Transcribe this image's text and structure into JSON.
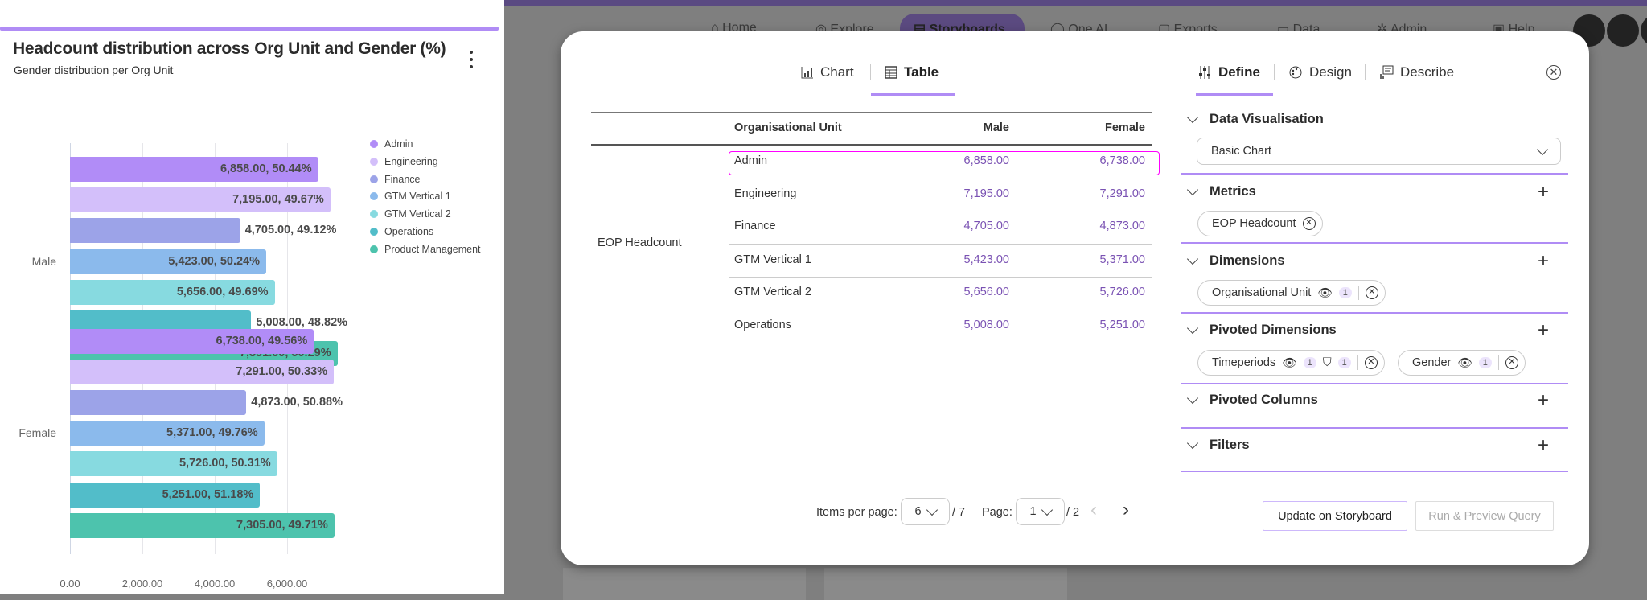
{
  "card": {
    "title": "Headcount distribution across Org Unit and Gender (%)",
    "subtitle": "Gender distribution per Org Unit"
  },
  "chart_data": {
    "type": "bar",
    "orientation": "horizontal",
    "categories": [
      "Male",
      "Female"
    ],
    "xticks": [
      "0.00",
      "2,000.00",
      "4,000.00",
      "6,000.00"
    ],
    "xlim": [
      0,
      7500
    ],
    "grid": true,
    "legend": "right",
    "series": [
      {
        "name": "Admin",
        "color": "#b18cf7",
        "values": [
          6858,
          6738
        ],
        "percents": [
          50.44,
          49.56
        ],
        "labels": [
          "6,858.00, 50.44%",
          "6,738.00, 49.56%"
        ]
      },
      {
        "name": "Engineering",
        "color": "#d3bffa",
        "values": [
          7195,
          7291
        ],
        "percents": [
          49.67,
          50.33
        ],
        "labels": [
          "7,195.00, 49.67%",
          "7,291.00, 50.33%"
        ]
      },
      {
        "name": "Finance",
        "color": "#9ca3e8",
        "values": [
          4705,
          4873
        ],
        "percents": [
          49.12,
          50.88
        ],
        "labels": [
          "4,705.00, 49.12%",
          "4,873.00, 50.88%"
        ]
      },
      {
        "name": "GTM Vertical 1",
        "color": "#8bbaec",
        "values": [
          5423,
          5371
        ],
        "percents": [
          50.24,
          49.76
        ],
        "labels": [
          "5,423.00, 50.24%",
          "5,371.00, 49.76%"
        ]
      },
      {
        "name": "GTM Vertical 2",
        "color": "#87dae0",
        "values": [
          5656,
          5726
        ],
        "percents": [
          49.69,
          50.31
        ],
        "labels": [
          "5,656.00, 49.69%",
          "5,726.00, 50.31%"
        ]
      },
      {
        "name": "Operations",
        "color": "#52bdc9",
        "values": [
          5008,
          5251
        ],
        "percents": [
          48.82,
          51.18
        ],
        "labels": [
          "5,008.00, 48.82%",
          "5,251.00, 51.18%"
        ]
      },
      {
        "name": "Product Management",
        "color": "#4dc3ad",
        "values": [
          7391,
          7305
        ],
        "percents": [
          50.29,
          49.71
        ],
        "labels": [
          "7,391.00, 50.29%",
          "7,305.00, 49.71%"
        ]
      }
    ]
  },
  "nav": {
    "items": [
      "Home",
      "Explore",
      "Storyboards",
      "One AI",
      "Exports",
      "Data",
      "Admin",
      "Help"
    ],
    "active": "Storyboards"
  },
  "modal": {
    "view_tabs": [
      {
        "label": "Chart",
        "icon": "bar-chart-icon"
      },
      {
        "label": "Table",
        "icon": "table-icon",
        "active": true
      }
    ],
    "config_tabs": [
      {
        "label": "Define",
        "icon": "sliders-icon",
        "active": true
      },
      {
        "label": "Design",
        "icon": "palette-icon"
      },
      {
        "label": "Describe",
        "icon": "describe-icon"
      }
    ],
    "table": {
      "headers": [
        "Organisational Unit",
        "Male",
        "Female"
      ],
      "row_group": "EOP Headcount",
      "rows": [
        [
          "Admin",
          "6,858.00",
          "6,738.00"
        ],
        [
          "Engineering",
          "7,195.00",
          "7,291.00"
        ],
        [
          "Finance",
          "4,705.00",
          "4,873.00"
        ],
        [
          "GTM Vertical 1",
          "5,423.00",
          "5,371.00"
        ],
        [
          "GTM Vertical 2",
          "5,656.00",
          "5,726.00"
        ],
        [
          "Operations",
          "5,008.00",
          "5,251.00"
        ]
      ]
    },
    "pagination": {
      "items_label": "Items per page:",
      "items_per_page": "6",
      "total_items": "/ 7",
      "page_label": "Page:",
      "page": "1",
      "total_pages": "/ 2"
    },
    "define": {
      "data_visualisation": {
        "title": "Data Visualisation",
        "value": "Basic Chart"
      },
      "metrics": {
        "title": "Metrics",
        "chips": [
          "EOP Headcount"
        ]
      },
      "dimensions": {
        "title": "Dimensions",
        "chip": "Organisational Unit",
        "count": "1"
      },
      "pivoted_dimensions": {
        "title": "Pivoted Dimensions",
        "chip1": "Timeperiods",
        "chip1_count": "1",
        "chip1_filter_count": "1",
        "chip2": "Gender",
        "chip2_count": "1"
      },
      "pivoted_columns": {
        "title": "Pivoted Columns"
      },
      "filters": {
        "title": "Filters"
      }
    },
    "buttons": {
      "update": "Update on Storyboard",
      "run": "Run & Preview Query"
    },
    "colors": {
      "accent": "#b08cf5",
      "highlight": "#ff00ff",
      "value": "#7a52b3"
    }
  }
}
